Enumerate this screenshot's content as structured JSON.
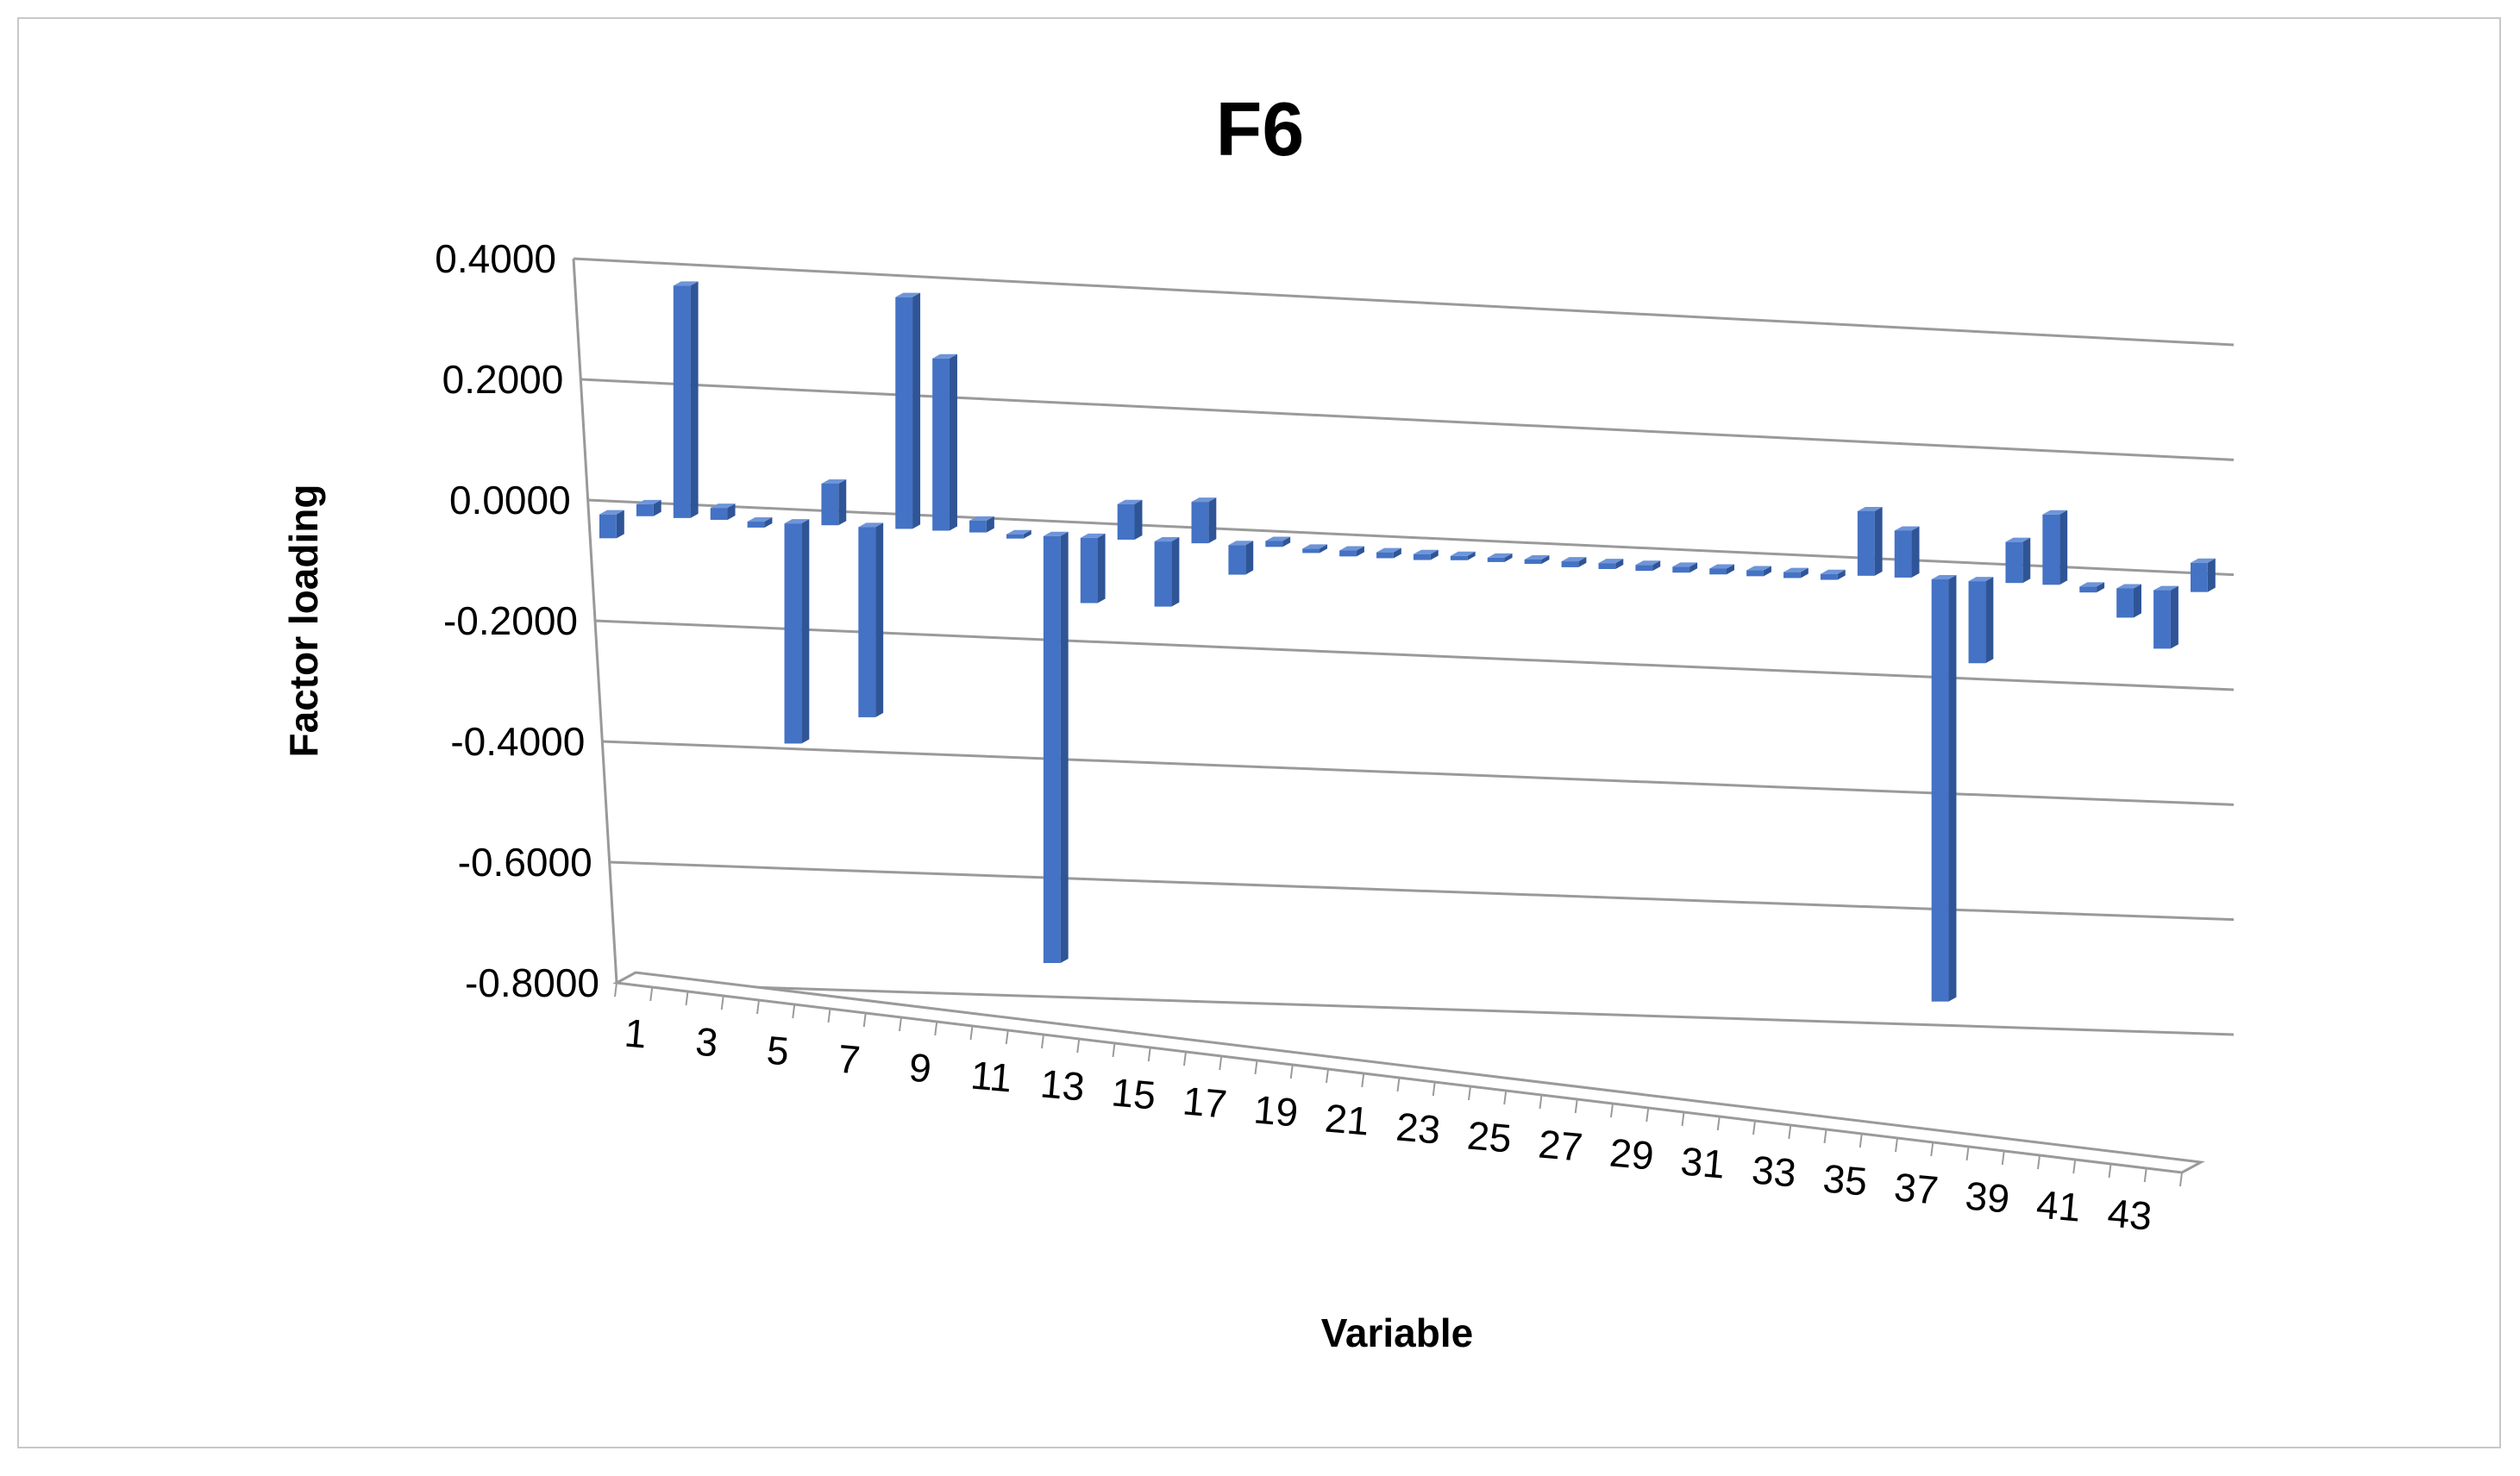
{
  "chart_data": {
    "type": "bar",
    "title": "F6",
    "xlabel": "Variable",
    "ylabel": "Factor loading",
    "ylim": [
      -0.8,
      0.4
    ],
    "yticks": [
      "0.4000",
      "0.2000",
      "0.0000",
      "-0.2000",
      "-0.4000",
      "-0.6000",
      "-0.8000"
    ],
    "xtick_labels": [
      "1",
      "3",
      "5",
      "7",
      "9",
      "11",
      "13",
      "15",
      "17",
      "19",
      "21",
      "23",
      "25",
      "27",
      "29",
      "31",
      "33",
      "35",
      "37",
      "39",
      "41",
      "43"
    ],
    "categories": [
      "1",
      "2",
      "3",
      "4",
      "5",
      "6",
      "7",
      "8",
      "9",
      "10",
      "11",
      "12",
      "13",
      "14",
      "15",
      "16",
      "17",
      "18",
      "19",
      "20",
      "21",
      "22",
      "23",
      "24",
      "25",
      "26",
      "27",
      "28",
      "29",
      "30",
      "31",
      "32",
      "33",
      "34",
      "35",
      "36",
      "37",
      "38",
      "39",
      "40",
      "41",
      "42",
      "43",
      "44"
    ],
    "values": [
      -0.04,
      0.02,
      0.39,
      0.02,
      -0.01,
      -0.37,
      0.07,
      -0.32,
      0.39,
      0.29,
      0.02,
      0.0,
      -0.72,
      -0.11,
      0.06,
      -0.11,
      0.07,
      -0.05,
      0.01,
      0.0,
      -0.01,
      -0.01,
      -0.01,
      0.0,
      0.0,
      0.0,
      -0.01,
      -0.01,
      -0.01,
      -0.01,
      -0.01,
      -0.01,
      -0.01,
      -0.01,
      0.11,
      0.08,
      -0.72,
      -0.14,
      0.07,
      0.12,
      -0.01,
      -0.05,
      -0.1,
      0.05
    ],
    "bar_color": "#4472C4",
    "grid": true,
    "legend": "none"
  }
}
